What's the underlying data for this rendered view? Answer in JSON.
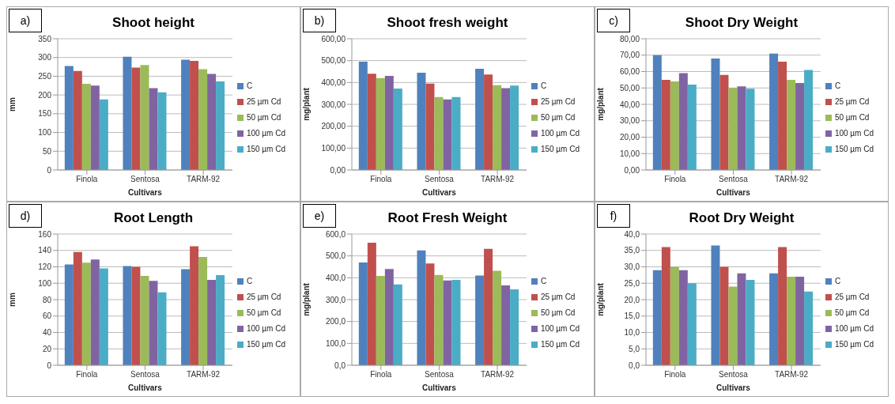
{
  "chart_data": [
    {
      "type": "bar",
      "title": "Shoot height",
      "annotations": [
        "a)"
      ],
      "xlabel": "Cultivars",
      "ylabel": "mm",
      "categories": [
        "Finola",
        "Sentosa",
        "TARM-92"
      ],
      "ylim": [
        0,
        350
      ],
      "yticks": [
        0,
        50,
        100,
        150,
        200,
        250,
        300,
        350
      ],
      "grid": "y",
      "legend": "right",
      "series": [
        {
          "name": "C",
          "color": "#4f81bd",
          "values": [
            277,
            302,
            294
          ]
        },
        {
          "name": "25 µm Cd",
          "color": "#c0504d",
          "values": [
            264,
            273,
            291
          ]
        },
        {
          "name": "50 µm Cd",
          "color": "#9bbb59",
          "values": [
            230,
            280,
            269
          ]
        },
        {
          "name": "100 µm Cd",
          "color": "#8064a2",
          "values": [
            225,
            218,
            256
          ]
        },
        {
          "name": "150 µm Cd",
          "color": "#4bacc6",
          "values": [
            188,
            207,
            236
          ]
        }
      ]
    },
    {
      "type": "bar",
      "title": "Shoot fresh weight",
      "annotations": [
        "b)"
      ],
      "xlabel": "Cultivars",
      "ylabel": "mg/plant",
      "categories": [
        "Finola",
        "Sentosa",
        "TARM-92"
      ],
      "ylim": [
        0,
        600
      ],
      "yticks": [
        {
          "value": 0,
          "label": "0,00"
        },
        {
          "value": 100,
          "label": "100,00"
        },
        {
          "value": 200,
          "label": "200,00"
        },
        {
          "value": 300,
          "label": "300,00"
        },
        {
          "value": 400,
          "label": "400,00"
        },
        {
          "value": 500,
          "label": "500,00"
        },
        {
          "value": 600,
          "label": "600,00"
        }
      ],
      "grid": "y",
      "legend": "right",
      "series": [
        {
          "name": "C",
          "color": "#4f81bd",
          "values": [
            495,
            445,
            463
          ]
        },
        {
          "name": "25 µm Cd",
          "color": "#c0504d",
          "values": [
            440,
            395,
            436
          ]
        },
        {
          "name": "50 µm Cd",
          "color": "#9bbb59",
          "values": [
            420,
            333,
            388
          ]
        },
        {
          "name": "100 µm Cd",
          "color": "#8064a2",
          "values": [
            430,
            323,
            374
          ]
        },
        {
          "name": "150 µm Cd",
          "color": "#4bacc6",
          "values": [
            372,
            333,
            386
          ]
        }
      ]
    },
    {
      "type": "bar",
      "title": "Shoot Dry Weight",
      "annotations": [
        "c)"
      ],
      "xlabel": "Cultivars",
      "ylabel": "mg/plant",
      "categories": [
        "Finola",
        "Sentosa",
        "TARM-92"
      ],
      "ylim": [
        0,
        80
      ],
      "yticks": [
        {
          "value": 0,
          "label": "0,00"
        },
        {
          "value": 10,
          "label": "10,00"
        },
        {
          "value": 20,
          "label": "20,00"
        },
        {
          "value": 30,
          "label": "30,00"
        },
        {
          "value": 40,
          "label": "40,00"
        },
        {
          "value": 50,
          "label": "50,00"
        },
        {
          "value": 60,
          "label": "60,00"
        },
        {
          "value": 70,
          "label": "70,00"
        },
        {
          "value": 80,
          "label": "80,00"
        }
      ],
      "grid": "y",
      "legend": "right",
      "series": [
        {
          "name": "C",
          "color": "#4f81bd",
          "values": [
            70,
            68,
            71
          ]
        },
        {
          "name": "25 µm Cd",
          "color": "#c0504d",
          "values": [
            55,
            58,
            66
          ]
        },
        {
          "name": "50 µm Cd",
          "color": "#9bbb59",
          "values": [
            54,
            50,
            55
          ]
        },
        {
          "name": "100 µm Cd",
          "color": "#8064a2",
          "values": [
            59,
            51,
            53
          ]
        },
        {
          "name": "150 µm Cd",
          "color": "#4bacc6",
          "values": [
            52,
            49.5,
            61
          ]
        }
      ]
    },
    {
      "type": "bar",
      "title": "Root Length",
      "annotations": [
        "d)"
      ],
      "xlabel": "Cultivars",
      "ylabel": "mm",
      "categories": [
        "Finola",
        "Sentosa",
        "TARM-92"
      ],
      "ylim": [
        0,
        160
      ],
      "yticks": [
        0,
        20,
        40,
        60,
        80,
        100,
        120,
        140,
        160
      ],
      "grid": "y",
      "legend": "right",
      "series": [
        {
          "name": "C",
          "color": "#4f81bd",
          "values": [
            123,
            121,
            117
          ]
        },
        {
          "name": "25 µm Cd",
          "color": "#c0504d",
          "values": [
            138,
            120,
            145
          ]
        },
        {
          "name": "50 µm Cd",
          "color": "#9bbb59",
          "values": [
            125,
            109,
            132
          ]
        },
        {
          "name": "100 µm Cd",
          "color": "#8064a2",
          "values": [
            129,
            103,
            104
          ]
        },
        {
          "name": "150 µm Cd",
          "color": "#4bacc6",
          "values": [
            118,
            89,
            110
          ]
        }
      ]
    },
    {
      "type": "bar",
      "title": "Root Fresh Weight",
      "annotations": [
        "e)"
      ],
      "xlabel": "Cultivars",
      "ylabel": "mg/plant",
      "categories": [
        "Finola",
        "Sentosa",
        "TARM-92"
      ],
      "ylim": [
        0,
        600
      ],
      "yticks": [
        {
          "value": 0,
          "label": "0,0"
        },
        {
          "value": 100,
          "label": "100,0"
        },
        {
          "value": 200,
          "label": "200,0"
        },
        {
          "value": 300,
          "label": "300,0"
        },
        {
          "value": 400,
          "label": "400,0"
        },
        {
          "value": 500,
          "label": "500,0"
        },
        {
          "value": 600,
          "label": "600,0"
        }
      ],
      "grid": "y",
      "legend": "right",
      "series": [
        {
          "name": "C",
          "color": "#4f81bd",
          "values": [
            470,
            525,
            410
          ]
        },
        {
          "name": "25 µm Cd",
          "color": "#c0504d",
          "values": [
            560,
            465,
            532
          ]
        },
        {
          "name": "50 µm Cd",
          "color": "#9bbb59",
          "values": [
            408,
            413,
            432
          ]
        },
        {
          "name": "100 µm Cd",
          "color": "#8064a2",
          "values": [
            440,
            388,
            365
          ]
        },
        {
          "name": "150 µm Cd",
          "color": "#4bacc6",
          "values": [
            370,
            390,
            347
          ]
        }
      ]
    },
    {
      "type": "bar",
      "title": "Root Dry Weight",
      "annotations": [
        "f)"
      ],
      "xlabel": "Cultivars",
      "ylabel": "mg/plant",
      "categories": [
        "Finola",
        "Sentosa",
        "TARM-92"
      ],
      "ylim": [
        0,
        40
      ],
      "yticks": [
        {
          "value": 0,
          "label": "0,0"
        },
        {
          "value": 5,
          "label": "5,0"
        },
        {
          "value": 10,
          "label": "10,0"
        },
        {
          "value": 15,
          "label": "15,0"
        },
        {
          "value": 20,
          "label": "20,0"
        },
        {
          "value": 25,
          "label": "25,0"
        },
        {
          "value": 30,
          "label": "30,0"
        },
        {
          "value": 35,
          "label": "35,0"
        },
        {
          "value": 40,
          "label": "40,0"
        }
      ],
      "grid": "y",
      "legend": "right",
      "series": [
        {
          "name": "C",
          "color": "#4f81bd",
          "values": [
            29,
            36.5,
            28
          ]
        },
        {
          "name": "25 µm Cd",
          "color": "#c0504d",
          "values": [
            36,
            30,
            36
          ]
        },
        {
          "name": "50 µm Cd",
          "color": "#9bbb59",
          "values": [
            30,
            24,
            27
          ]
        },
        {
          "name": "100 µm Cd",
          "color": "#8064a2",
          "values": [
            29,
            28,
            27
          ]
        },
        {
          "name": "150 µm Cd",
          "color": "#4bacc6",
          "values": [
            25,
            26,
            22.5
          ]
        }
      ]
    }
  ]
}
